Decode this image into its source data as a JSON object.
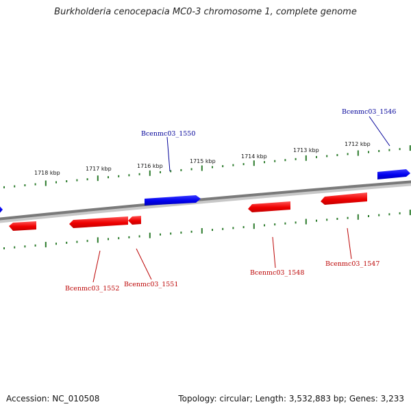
{
  "title": "Burkholderia cenocepacia MC0-3 chromosome 1, complete genome",
  "footer": {
    "accession": "Accession: NC_010508",
    "summary": "Topology: circular; Length: 3,532,883 bp; Genes: 3,233"
  },
  "colors": {
    "forward_gene": "#0000ee",
    "reverse_gene": "#ee0000",
    "forward_label": "#000099",
    "reverse_label": "#bb0000",
    "tick": "#2a7a2a",
    "backbone": "#888888"
  },
  "ticks": [
    {
      "label": "1718 kbp"
    },
    {
      "label": "1717 kbp"
    },
    {
      "label": "1716 kbp"
    },
    {
      "label": "1715 kbp"
    },
    {
      "label": "1714 kbp"
    },
    {
      "label": "1713 kbp"
    },
    {
      "label": "1712 kbp"
    }
  ],
  "genes": [
    {
      "name": "Bcenmc03_1546",
      "strand": "forward"
    },
    {
      "name": "Bcenmc03_1547",
      "strand": "reverse"
    },
    {
      "name": "Bcenmc03_1548",
      "strand": "reverse"
    },
    {
      "name": "Bcenmc03_1550",
      "strand": "forward"
    },
    {
      "name": "Bcenmc03_1551",
      "strand": "reverse"
    },
    {
      "name": "Bcenmc03_1552",
      "strand": "reverse"
    }
  ]
}
